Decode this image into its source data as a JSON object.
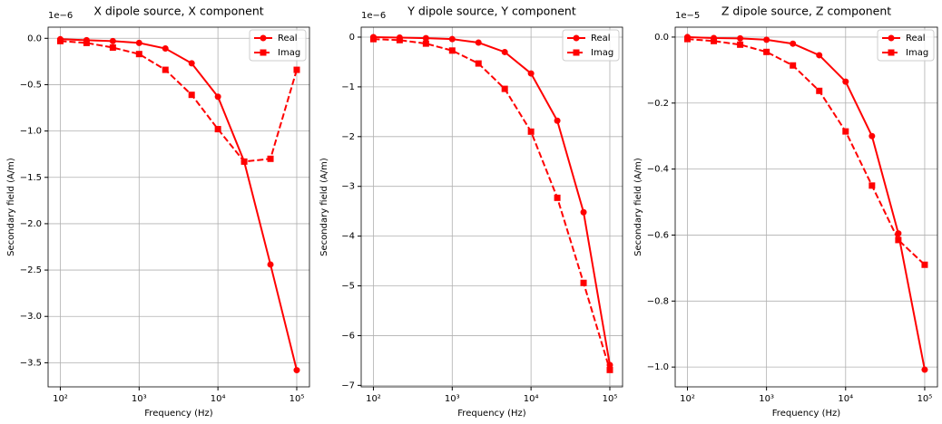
{
  "chart_data": [
    {
      "type": "line",
      "title": "X dipole source, X component",
      "xlabel": "Frequency (Hz)",
      "ylabel": "Secondary field (A/m)",
      "offset_label": "1e−6",
      "xscale": "log",
      "grid": true,
      "legend": "upper right",
      "x": [
        100,
        215.4,
        464.2,
        1000,
        2154.4,
        4641.6,
        10000,
        21544.3,
        46415.9,
        100000
      ],
      "xlim": [
        70,
        145000
      ],
      "xticks": [
        {
          "value": 100,
          "label": "10²"
        },
        {
          "value": 1000,
          "label": "10³"
        },
        {
          "value": 10000,
          "label": "10⁴"
        },
        {
          "value": 100000,
          "label": "10⁵"
        }
      ],
      "ylim": [
        -3.76,
        0.12
      ],
      "yticks": [
        {
          "value": 0,
          "label": "0.0"
        },
        {
          "value": -0.5,
          "label": "−0.5"
        },
        {
          "value": -1,
          "label": "−1.0"
        },
        {
          "value": -1.5,
          "label": "−1.5"
        },
        {
          "value": -2,
          "label": "−2.0"
        },
        {
          "value": -2.5,
          "label": "−2.5"
        },
        {
          "value": -3,
          "label": "−3.0"
        },
        {
          "value": -3.5,
          "label": "−3.5"
        }
      ],
      "series": [
        {
          "name": "Real",
          "color": "#ff0000",
          "marker": "circle",
          "linestyle": "solid",
          "values": [
            -0.01,
            -0.02,
            -0.03,
            -0.05,
            -0.11,
            -0.27,
            -0.63,
            -1.33,
            -2.44,
            -3.58
          ]
        },
        {
          "name": "Imag",
          "color": "#ff0000",
          "marker": "square",
          "linestyle": "dashed",
          "values": [
            -0.03,
            -0.05,
            -0.1,
            -0.17,
            -0.34,
            -0.61,
            -0.98,
            -1.33,
            -1.3,
            -0.34
          ]
        }
      ]
    },
    {
      "type": "line",
      "title": "Y dipole source, Y component",
      "xlabel": "Frequency (Hz)",
      "ylabel": "Secondary field (A/m)",
      "offset_label": "1e−6",
      "xscale": "log",
      "grid": true,
      "legend": "upper right",
      "x": [
        100,
        215.4,
        464.2,
        1000,
        2154.4,
        4641.6,
        10000,
        21544.3,
        46415.9,
        100000
      ],
      "xlim": [
        70,
        145000
      ],
      "xticks": [
        {
          "value": 100,
          "label": "10²"
        },
        {
          "value": 1000,
          "label": "10³"
        },
        {
          "value": 10000,
          "label": "10⁴"
        },
        {
          "value": 100000,
          "label": "10⁵"
        }
      ],
      "ylim": [
        -7.03,
        0.2
      ],
      "yticks": [
        0,
        {
          "value": -1,
          "label": "−1"
        },
        {
          "value": -2,
          "label": "−2"
        },
        {
          "value": -3,
          "label": "−3"
        },
        {
          "value": -4,
          "label": "−4"
        },
        {
          "value": -5,
          "label": "−5"
        },
        {
          "value": -6,
          "label": "−6"
        },
        {
          "value": -7,
          "label": "−7"
        }
      ],
      "series": [
        {
          "name": "Real",
          "color": "#ff0000",
          "marker": "circle",
          "linestyle": "solid",
          "values": [
            0,
            -0.01,
            -0.02,
            -0.04,
            -0.11,
            -0.3,
            -0.73,
            -1.68,
            -3.52,
            -6.59
          ]
        },
        {
          "name": "Imag",
          "color": "#ff0000",
          "marker": "square",
          "linestyle": "dashed",
          "values": [
            -0.04,
            -0.06,
            -0.13,
            -0.27,
            -0.53,
            -1.04,
            -1.9,
            -3.23,
            -4.94,
            -6.69
          ]
        }
      ]
    },
    {
      "type": "line",
      "title": "Z dipole source, Z component",
      "xlabel": "Frequency (Hz)",
      "ylabel": "Secondary field (A/m)",
      "offset_label": "1e−5",
      "xscale": "log",
      "grid": true,
      "legend": "upper right",
      "x": [
        100,
        215.4,
        464.2,
        1000,
        2154.4,
        4641.6,
        10000,
        21544.3,
        46415.9,
        100000
      ],
      "xlim": [
        70,
        145000
      ],
      "xticks": [
        {
          "value": 100,
          "label": "10²"
        },
        {
          "value": 1000,
          "label": "10³"
        },
        {
          "value": 10000,
          "label": "10⁴"
        },
        {
          "value": 100000,
          "label": "10⁵"
        }
      ],
      "ylim": [
        -1.06,
        0.03
      ],
      "yticks": [
        {
          "value": 0,
          "label": "0.0"
        },
        {
          "value": -0.2,
          "label": "−0.2"
        },
        {
          "value": -0.4,
          "label": "−0.4"
        },
        {
          "value": -0.6,
          "label": "−0.6"
        },
        {
          "value": -0.8,
          "label": "−0.8"
        },
        {
          "value": -1,
          "label": "−1.0"
        }
      ],
      "series": [
        {
          "name": "Real",
          "color": "#ff0000",
          "marker": "circle",
          "linestyle": "solid",
          "values": [
            0,
            -0.003,
            -0.004,
            -0.008,
            -0.02,
            -0.055,
            -0.135,
            -0.3,
            -0.595,
            -1.008
          ]
        },
        {
          "name": "Imag",
          "color": "#ff0000",
          "marker": "square",
          "linestyle": "dashed",
          "values": [
            -0.006,
            -0.012,
            -0.023,
            -0.045,
            -0.086,
            -0.163,
            -0.286,
            -0.45,
            -0.615,
            -0.69
          ]
        }
      ]
    }
  ]
}
